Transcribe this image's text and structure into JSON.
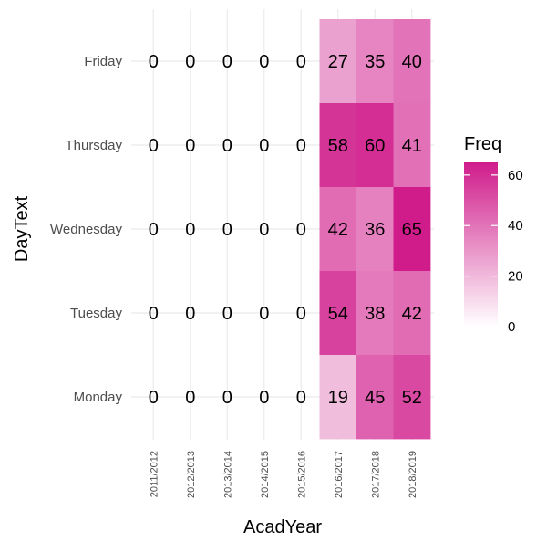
{
  "chart_data": {
    "type": "heatmap",
    "xlabel": "AcadYear",
    "ylabel": "DayText",
    "x_categories": [
      "2011/2012",
      "2012/2013",
      "2013/2014",
      "2014/2015",
      "2015/2016",
      "2016/2017",
      "2017/2018",
      "2018/2019"
    ],
    "y_categories": [
      "Friday",
      "Thursday",
      "Wednesday",
      "Tuesday",
      "Monday"
    ],
    "values": [
      [
        0,
        0,
        0,
        0,
        0,
        27,
        35,
        40
      ],
      [
        0,
        0,
        0,
        0,
        0,
        58,
        60,
        41
      ],
      [
        0,
        0,
        0,
        0,
        0,
        42,
        36,
        65
      ],
      [
        0,
        0,
        0,
        0,
        0,
        54,
        38,
        42
      ],
      [
        0,
        0,
        0,
        0,
        0,
        19,
        45,
        52
      ]
    ],
    "color_scale": {
      "low": "#ffffff",
      "high": "#d01c8b",
      "min": 0,
      "max": 65
    },
    "legend": {
      "title": "Freq",
      "ticks": [
        0,
        20,
        40,
        60
      ],
      "placement": "right"
    },
    "grid": true,
    "zero_cells_filled": false
  }
}
